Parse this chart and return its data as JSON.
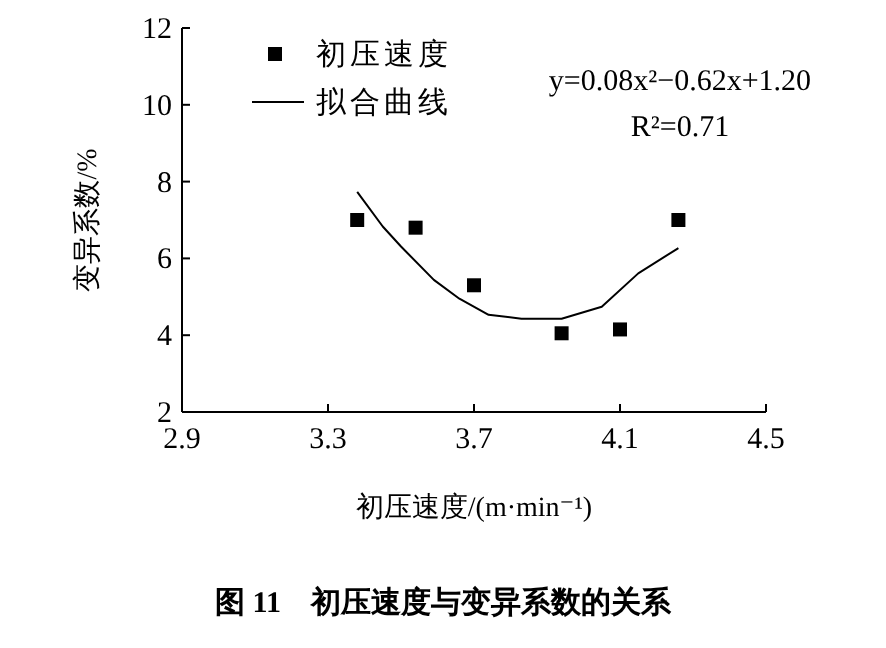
{
  "chart_data": {
    "type": "scatter",
    "title": "图 11　初压速度与变异系数的关系",
    "xlabel": "初压速度/(m·min⁻¹)",
    "ylabel": "变异系数/%",
    "annotations": [
      "y=0.08x²−0.62x+1.20",
      "R²=0.71"
    ],
    "x": [
      3.38,
      3.54,
      3.7,
      3.94,
      4.1,
      4.26
    ],
    "series": [
      {
        "name": "初压速度",
        "marker": "square",
        "color": "#000000",
        "values": [
          7.0,
          6.8,
          5.3,
          4.05,
          4.15,
          7.0
        ]
      },
      {
        "name": "拟合曲线",
        "type": "line",
        "marker": "none",
        "line_style": "solid",
        "color": "#000000",
        "x": [
          3.38,
          3.45,
          3.5,
          3.59,
          3.66,
          3.74,
          3.83,
          3.94,
          4.05,
          4.15,
          4.26
        ],
        "values": [
          7.73,
          6.83,
          6.31,
          5.44,
          4.95,
          4.53,
          4.43,
          4.43,
          4.74,
          5.61,
          6.27
        ]
      }
    ],
    "xlim": [
      2.9,
      4.5
    ],
    "ylim": [
      2,
      12
    ],
    "xticks": [
      2.9,
      3.3,
      3.7,
      4.1,
      4.5
    ],
    "yticks": [
      2,
      4,
      6,
      8,
      10,
      12
    ],
    "grid": false,
    "legend": "top left"
  }
}
